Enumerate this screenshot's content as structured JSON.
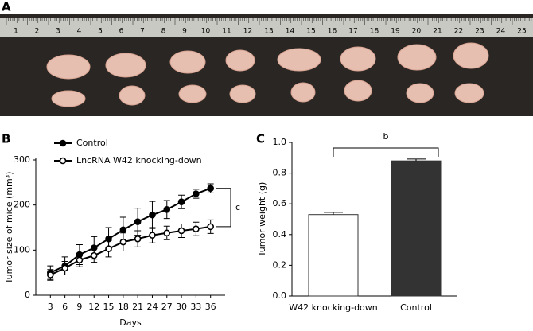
{
  "photo": {
    "label": "A",
    "ruler": [
      1,
      2,
      3,
      4,
      5,
      6,
      7,
      8,
      9,
      10,
      11,
      12,
      13,
      14,
      15,
      16,
      17,
      18,
      19,
      20,
      21,
      22,
      23,
      24,
      25
    ]
  },
  "chart_data": [
    {
      "type": "line",
      "panel_label": "B",
      "xlabel": "Days",
      "ylabel": "Tumor size of mice (mm³)",
      "x": [
        3,
        6,
        9,
        12,
        15,
        18,
        21,
        24,
        27,
        30,
        33,
        36
      ],
      "xlim": [
        0,
        39
      ],
      "xticks": [
        3,
        6,
        9,
        12,
        15,
        18,
        21,
        24,
        27,
        30,
        33,
        36
      ],
      "ylim": [
        0,
        300
      ],
      "yticks": [
        0,
        100,
        200,
        300
      ],
      "series": [
        {
          "name": "Control",
          "color": "#000000",
          "marker": "filled",
          "values": [
            50,
            65,
            90,
            105,
            125,
            145,
            163,
            178,
            190,
            207,
            225,
            237
          ],
          "errors": [
            15,
            20,
            22,
            25,
            25,
            28,
            30,
            30,
            20,
            15,
            10,
            10
          ]
        },
        {
          "name": "LncRNA W42 knocking-down",
          "color": "#000000",
          "marker": "open",
          "values": [
            45,
            60,
            78,
            88,
            103,
            118,
            125,
            133,
            138,
            143,
            147,
            152
          ],
          "errors": [
            12,
            15,
            15,
            15,
            18,
            20,
            18,
            17,
            15,
            15,
            15,
            15
          ]
        }
      ],
      "annotation": "c"
    },
    {
      "type": "bar",
      "panel_label": "C",
      "ylabel": "Tumor weight (g)",
      "categories": [
        "W42 knocking-down",
        "Control"
      ],
      "values": [
        0.53,
        0.88
      ],
      "errors": [
        0.015,
        0.012
      ],
      "colors": [
        "#ffffff",
        "#333333"
      ],
      "ylim": [
        0,
        1
      ],
      "yticks": [
        {
          "value": 0,
          "label": "0.0"
        },
        0.2,
        0.4,
        0.6,
        0.8,
        {
          "value": 1,
          "label": "1.0"
        }
      ],
      "annotation": "b"
    }
  ]
}
